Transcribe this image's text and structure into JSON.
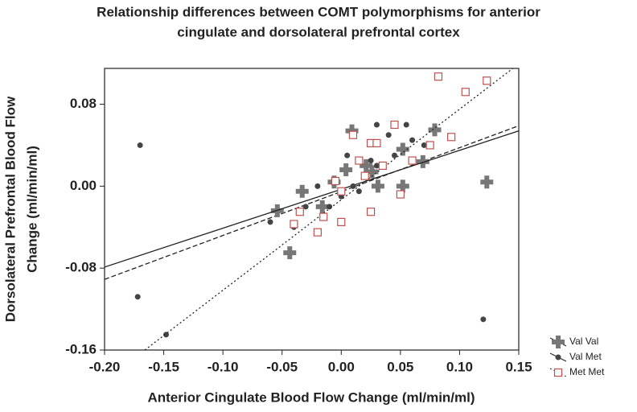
{
  "chart_data": {
    "type": "scatter",
    "title": [
      "Relationship differences between COMT polymorphisms for anterior",
      "cingulate and dorsolateral prefrontal cortex"
    ],
    "xlabel": "Anterior Cingulate Blood Flow Change (ml/min/ml)",
    "ylabel": [
      "Dorsolateral Prefrontal Blood Flow",
      "Change (ml/min/ml)"
    ],
    "xlim": [
      -0.2,
      0.15
    ],
    "ylim": [
      -0.16,
      0.115
    ],
    "xticks": [
      {
        "value": -0.2,
        "label": "-0.20"
      },
      {
        "value": -0.15,
        "label": "-0.15"
      },
      {
        "value": -0.1,
        "label": "-0.10"
      },
      {
        "value": -0.05,
        "label": "-0.05"
      },
      {
        "value": 0,
        "label": "0.00"
      },
      {
        "value": 0.05,
        "label": "0.05"
      },
      {
        "value": 0.1,
        "label": "0.10"
      },
      {
        "value": 0.15,
        "label": "0.15"
      }
    ],
    "yticks": [
      {
        "value": 0.08,
        "label": "0.08"
      },
      {
        "value": 0,
        "label": "0.00"
      },
      {
        "value": -0.08,
        "label": "-0.08"
      },
      {
        "value": -0.16,
        "label": "-0.16"
      }
    ],
    "legend": "lower right",
    "series": [
      {
        "name": "Val Val",
        "color": "#777777",
        "marker": "cross",
        "line_style": "dashed",
        "x": [
          -0.0435,
          0.009,
          0.079,
          0.123,
          0.052,
          -0.054,
          -0.033,
          0.021,
          0.026,
          0.004,
          0.052,
          0.069,
          -0.016,
          -0.006,
          0.031
        ],
        "y": [
          -0.065,
          0.054,
          0.055,
          0.004,
          0,
          -0.024,
          -0.005,
          0.02,
          0.014,
          0.016,
          0.036,
          0.024,
          -0.02,
          0.004,
          0
        ],
        "fit": {
          "x": [
            -0.2,
            0.15
          ],
          "y": [
            -0.091,
            0.059
          ]
        }
      },
      {
        "name": "Val Met",
        "color": "#444444",
        "marker": "dot",
        "line_style": "solid",
        "x": [
          -0.17,
          -0.172,
          -0.148,
          0.12,
          0.03,
          0.055,
          0.04,
          0.06,
          -0.04,
          -0.06,
          0,
          0.01,
          0.02,
          0.03,
          0.015,
          -0.01,
          0.045,
          0.07,
          -0.02,
          0.005,
          -0.03,
          0.025
        ],
        "y": [
          0.04,
          -0.108,
          -0.145,
          -0.13,
          0.06,
          0.06,
          0.05,
          0.045,
          -0.04,
          -0.035,
          -0.01,
          0,
          0.01,
          0.02,
          -0.005,
          -0.02,
          0.03,
          0.04,
          0,
          0.03,
          -0.02,
          0.025
        ],
        "fit": {
          "x": [
            -0.2,
            0.15
          ],
          "y": [
            -0.079,
            0.054
          ]
        }
      },
      {
        "name": "Met Met",
        "color": "#c05050",
        "marker": "square",
        "line_style": "dotted",
        "x": [
          0.082,
          0.123,
          0.105,
          0.093,
          0.075,
          0.045,
          0.025,
          0.03,
          0.01,
          0.015,
          0.02,
          0,
          -0.015,
          -0.02,
          -0.035,
          -0.04,
          0,
          0.025,
          0.05,
          0.06,
          0.035,
          -0.005
        ],
        "y": [
          0.107,
          0.103,
          0.092,
          0.048,
          0.04,
          0.06,
          0.042,
          0.042,
          0.05,
          0.025,
          0.01,
          -0.005,
          -0.03,
          -0.045,
          -0.025,
          -0.037,
          -0.035,
          -0.025,
          -0.008,
          0.025,
          0.02,
          0.005
        ],
        "fit": {
          "x": [
            -0.166,
            0.145
          ],
          "y": [
            -0.16,
            0.115
          ]
        }
      }
    ]
  }
}
